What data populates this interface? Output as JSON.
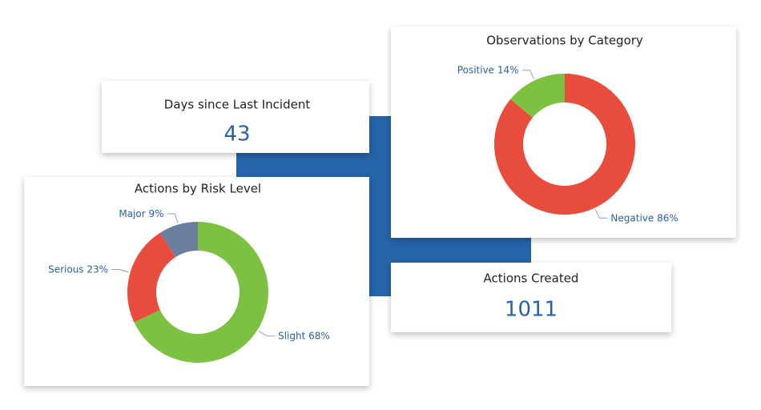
{
  "kpis": [
    {
      "title": "Days since Last Incident",
      "value": 43
    },
    {
      "title": "Actions Created",
      "value": 1011
    }
  ],
  "chart_data": [
    {
      "type": "donut",
      "title": "Observations by Category",
      "categories": [
        "Negative",
        "Positive"
      ],
      "values": [
        86,
        14
      ],
      "value_labels": [
        "86%",
        "14%"
      ],
      "colors": [
        "#e84c3d",
        "#7dc142"
      ]
    },
    {
      "type": "donut",
      "title": "Actions by Risk Level",
      "categories": [
        "Slight",
        "Serious",
        "Major"
      ],
      "values": [
        68,
        23,
        9
      ],
      "value_labels": [
        "68%",
        "23%",
        "9%"
      ],
      "colors": [
        "#7dc142",
        "#e84c3d",
        "#6a7f9e"
      ]
    }
  ]
}
